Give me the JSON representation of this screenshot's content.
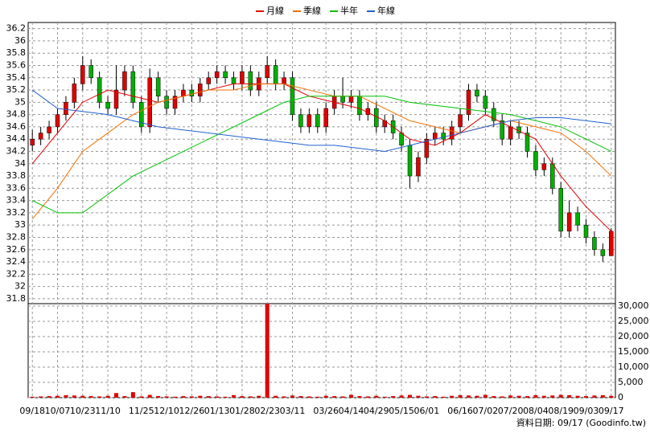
{
  "chart_data": {
    "type": "candlestick",
    "legend": [
      "月線",
      "季線",
      "半年",
      "年線"
    ],
    "footer": "資料日期: 09/17 (Goodinfo.tw)",
    "up_color": "#e00000",
    "down_color": "#00b000",
    "xlim": [
      -0.5,
      69.5
    ],
    "xticks": [
      {
        "value": 0,
        "label": "09/18"
      },
      {
        "value": 3,
        "label": "10/07"
      },
      {
        "value": 6,
        "label": "10/23"
      },
      {
        "value": 9,
        "label": "11/10"
      },
      {
        "value": 13,
        "label": "11/25"
      },
      {
        "value": 16,
        "label": "12/10"
      },
      {
        "value": 19,
        "label": "12/26"
      },
      {
        "value": 22,
        "label": "01/13"
      },
      {
        "value": 25,
        "label": "01/28"
      },
      {
        "value": 28,
        "label": "02/23"
      },
      {
        "value": 31,
        "label": "03/11"
      },
      {
        "value": 35,
        "label": "03/26"
      },
      {
        "value": 38,
        "label": "04/14"
      },
      {
        "value": 41,
        "label": "04/29"
      },
      {
        "value": 44,
        "label": "05/15"
      },
      {
        "value": 47,
        "label": "06/01"
      },
      {
        "value": 51,
        "label": "06/16"
      },
      {
        "value": 54,
        "label": "07/02"
      },
      {
        "value": 57,
        "label": "07/20"
      },
      {
        "value": 60,
        "label": "08/04"
      },
      {
        "value": 63,
        "label": "08/19"
      },
      {
        "value": 66,
        "label": "09/03"
      },
      {
        "value": 69,
        "label": "09/17"
      }
    ],
    "ylim": [
      31.72,
      36.3
    ],
    "yticks": [
      31.8,
      32,
      32.2,
      32.4,
      32.6,
      32.8,
      33,
      33.2,
      33.4,
      33.6,
      33.8,
      34,
      34.2,
      34.4,
      34.6,
      34.8,
      35,
      35.2,
      35.4,
      35.6,
      35.8,
      36,
      36.2
    ],
    "open": [
      34.3,
      34.4,
      34.5,
      34.6,
      34.8,
      35.0,
      35.3,
      35.6,
      35.4,
      35.0,
      34.9,
      35.2,
      35.5,
      35.0,
      34.6,
      35.4,
      35.1,
      34.9,
      35.1,
      35.2,
      35.1,
      35.3,
      35.4,
      35.5,
      35.4,
      35.3,
      35.5,
      35.2,
      35.4,
      35.6,
      35.3,
      35.4,
      34.8,
      34.6,
      34.8,
      34.6,
      34.9,
      35.1,
      35.0,
      35.1,
      34.8,
      34.9,
      34.6,
      34.7,
      34.5,
      34.3,
      33.8,
      34.1,
      34.4,
      34.5,
      34.4,
      34.6,
      34.8,
      35.2,
      35.1,
      34.9,
      34.7,
      34.4,
      34.6,
      34.5,
      34.2,
      33.9,
      34.0,
      33.6,
      32.9,
      33.2,
      33.0,
      32.8,
      32.6,
      32.5
    ],
    "high": [
      34.55,
      34.6,
      34.7,
      34.9,
      35.1,
      35.4,
      35.75,
      35.7,
      35.5,
      35.1,
      35.6,
      35.6,
      35.6,
      35.1,
      35.55,
      35.5,
      35.2,
      35.2,
      35.3,
      35.3,
      35.4,
      35.5,
      35.6,
      35.6,
      35.5,
      35.6,
      35.6,
      35.5,
      35.75,
      35.7,
      35.5,
      35.5,
      34.9,
      34.9,
      34.9,
      35.0,
      35.2,
      35.4,
      35.2,
      35.2,
      35.0,
      35.0,
      34.8,
      34.8,
      34.6,
      34.4,
      34.2,
      34.5,
      34.6,
      34.6,
      34.7,
      34.9,
      35.3,
      35.3,
      35.2,
      35.0,
      34.8,
      34.7,
      34.7,
      34.6,
      34.3,
      34.1,
      34.1,
      33.7,
      33.4,
      33.3,
      33.1,
      32.9,
      32.7,
      32.95
    ],
    "low": [
      34.2,
      34.3,
      34.4,
      34.5,
      34.7,
      34.9,
      35.2,
      35.3,
      34.9,
      34.8,
      34.8,
      35.1,
      34.9,
      34.5,
      34.5,
      35.0,
      34.8,
      34.8,
      35.0,
      35.0,
      35.0,
      35.2,
      35.3,
      35.3,
      35.2,
      35.2,
      35.1,
      35.1,
      35.3,
      35.2,
      35.2,
      34.7,
      34.5,
      34.5,
      34.5,
      34.5,
      34.8,
      34.9,
      34.9,
      34.7,
      34.7,
      34.5,
      34.5,
      34.4,
      34.2,
      33.6,
      33.7,
      34.0,
      34.3,
      34.3,
      34.3,
      34.5,
      34.7,
      35.0,
      34.8,
      34.6,
      34.3,
      34.3,
      34.4,
      34.1,
      33.8,
      33.8,
      33.5,
      32.8,
      32.8,
      32.9,
      32.7,
      32.5,
      32.4,
      32.5
    ],
    "close": [
      34.4,
      34.5,
      34.6,
      34.8,
      35.0,
      35.3,
      35.6,
      35.4,
      35.0,
      34.9,
      35.2,
      35.5,
      35.0,
      34.6,
      35.4,
      35.1,
      34.9,
      35.1,
      35.2,
      35.1,
      35.3,
      35.4,
      35.5,
      35.4,
      35.3,
      35.5,
      35.2,
      35.4,
      35.6,
      35.3,
      35.4,
      34.8,
      34.6,
      34.8,
      34.6,
      34.9,
      35.1,
      35.0,
      35.1,
      34.8,
      34.9,
      34.6,
      34.7,
      34.5,
      34.3,
      33.8,
      34.1,
      34.4,
      34.5,
      34.4,
      34.6,
      34.8,
      35.2,
      35.1,
      34.9,
      34.7,
      34.4,
      34.6,
      34.5,
      34.2,
      33.9,
      34.0,
      33.6,
      32.9,
      33.2,
      33.0,
      32.8,
      32.6,
      32.5,
      32.9
    ],
    "series": [
      {
        "name": "月線",
        "color": "#e00000",
        "x": [
          0,
          3,
          6,
          9,
          12,
          15,
          18,
          21,
          24,
          27,
          30,
          33,
          36,
          39,
          42,
          45,
          48,
          51,
          54,
          57,
          60,
          63,
          66,
          69
        ],
        "values": [
          34.0,
          34.5,
          35.0,
          35.2,
          35.1,
          35.0,
          35.1,
          35.2,
          35.3,
          35.3,
          35.3,
          35.1,
          35.0,
          34.9,
          34.7,
          34.4,
          34.3,
          34.5,
          34.8,
          34.6,
          34.4,
          33.8,
          33.3,
          32.9
        ]
      },
      {
        "name": "季線",
        "color": "#f07000",
        "x": [
          0,
          3,
          6,
          9,
          12,
          15,
          18,
          21,
          24,
          27,
          30,
          33,
          36,
          39,
          42,
          45,
          48,
          51,
          54,
          57,
          60,
          63,
          66,
          69
        ],
        "values": [
          33.1,
          33.6,
          34.2,
          34.5,
          34.8,
          35.0,
          35.1,
          35.2,
          35.2,
          35.3,
          35.3,
          35.2,
          35.1,
          35.1,
          34.9,
          34.7,
          34.6,
          34.5,
          34.6,
          34.7,
          34.6,
          34.5,
          34.2,
          33.8
        ]
      },
      {
        "name": "半年",
        "color": "#00c000",
        "x": [
          0,
          3,
          6,
          9,
          12,
          15,
          18,
          21,
          24,
          27,
          30,
          33,
          36,
          39,
          42,
          45,
          48,
          51,
          54,
          57,
          60,
          63,
          66,
          69
        ],
        "values": [
          33.4,
          33.2,
          33.2,
          33.5,
          33.8,
          34.0,
          34.2,
          34.4,
          34.6,
          34.8,
          35.0,
          35.1,
          35.1,
          35.1,
          35.1,
          35.0,
          34.95,
          34.9,
          34.85,
          34.8,
          34.7,
          34.6,
          34.4,
          34.2
        ]
      },
      {
        "name": "年線",
        "color": "#2060d0",
        "x": [
          0,
          3,
          6,
          9,
          12,
          15,
          18,
          21,
          24,
          27,
          30,
          33,
          36,
          39,
          42,
          45,
          48,
          51,
          54,
          57,
          60,
          63,
          66,
          69
        ],
        "values": [
          35.2,
          34.9,
          34.85,
          34.8,
          34.7,
          34.6,
          34.55,
          34.5,
          34.45,
          34.4,
          34.35,
          34.3,
          34.3,
          34.25,
          34.2,
          34.3,
          34.4,
          34.5,
          34.6,
          34.7,
          34.75,
          34.75,
          34.7,
          34.65
        ]
      }
    ],
    "volume_color": "#e00000",
    "volume_ylim": [
      0,
      30800
    ],
    "volume_yticks": [
      0,
      {
        "value": 5000,
        "label": "5,000"
      },
      {
        "value": 10000,
        "label": "10,000"
      },
      {
        "value": 15000,
        "label": "15,000"
      },
      {
        "value": 20000,
        "label": "20,000"
      },
      {
        "value": 25000,
        "label": "25,000"
      },
      {
        "value": 30000,
        "label": "30,000"
      }
    ],
    "volume": [
      300,
      400,
      500,
      600,
      800,
      700,
      600,
      500,
      400,
      600,
      1500,
      500,
      1800,
      400,
      900,
      500,
      400,
      300,
      500,
      400,
      600,
      500,
      400,
      300,
      800,
      500,
      400,
      600,
      30800,
      600,
      400,
      700,
      500,
      400,
      300,
      600,
      500,
      400,
      900,
      500,
      400,
      600,
      300,
      500,
      700,
      900,
      600,
      400,
      500,
      300,
      600,
      800,
      700,
      600,
      900,
      500,
      400,
      700,
      600,
      500,
      800,
      600,
      700,
      900,
      800,
      600,
      500,
      700,
      800,
      600
    ]
  }
}
